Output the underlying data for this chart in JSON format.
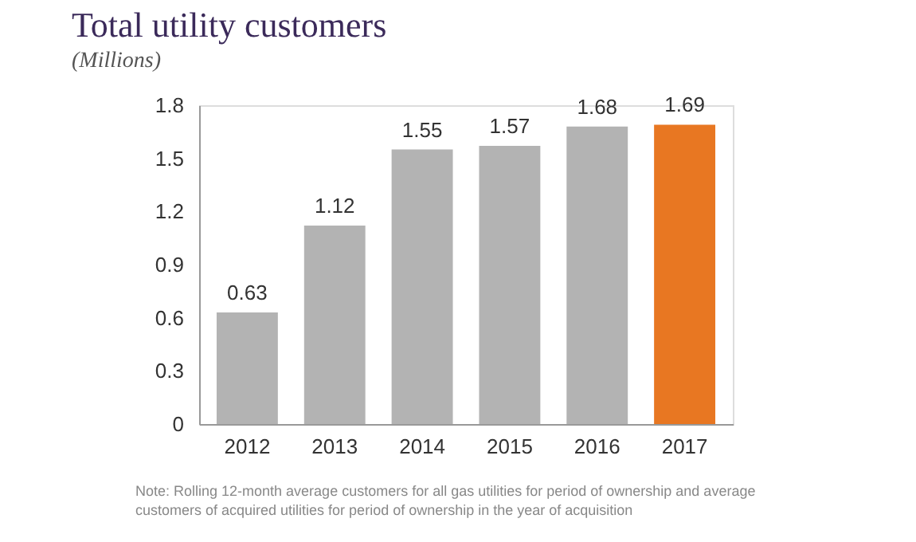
{
  "chart_data": {
    "type": "bar",
    "title": "Total utility customers",
    "subtitle": "(Millions)",
    "categories": [
      "2012",
      "2013",
      "2014",
      "2015",
      "2016",
      "2017"
    ],
    "values": [
      0.63,
      1.12,
      1.55,
      1.57,
      1.68,
      1.69
    ],
    "colors": [
      "#b3b3b3",
      "#b3b3b3",
      "#b3b3b3",
      "#b3b3b3",
      "#b3b3b3",
      "#e87722"
    ],
    "ylim": [
      0,
      1.8
    ],
    "yticks": [
      0,
      0.3,
      0.6,
      0.9,
      1.2,
      1.5,
      1.8
    ],
    "grid": false,
    "data_labels": true,
    "annotations": [
      "Note: Rolling 12-month average customers for all gas utilities for period of ownership and average customers of acquired utilities for period of ownership in the year of acquisition"
    ]
  }
}
